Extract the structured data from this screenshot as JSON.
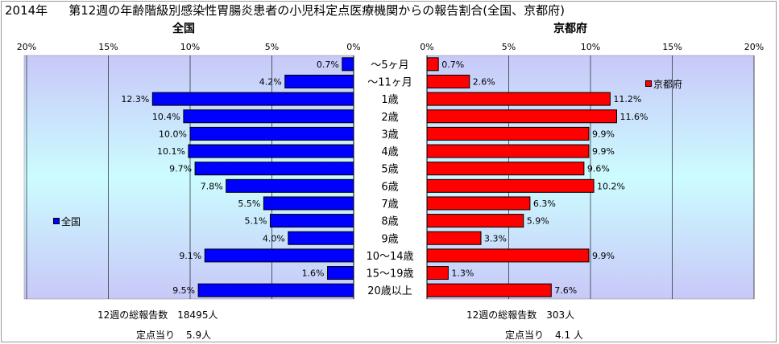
{
  "title": {
    "year": "2014年",
    "text": "第12週の年齢階級別感染性胃腸炎患者の小児科定点医療機関からの報告割合(全国、京都府)"
  },
  "colors": {
    "zenkoku_bar": "#0000ff",
    "kyoto_bar": "#ff0000",
    "plot_bg_top": "#c8c8f8",
    "plot_bg_mid": "#ccfcff",
    "plot_bg_bottom": "#c8c8f8",
    "grid": "#000000"
  },
  "chart_data": [
    {
      "type": "bar",
      "orientation": "horizontal",
      "direction": "right-to-left",
      "title": "全国",
      "categories": [
        "～5ヶ月",
        "～11ヶ月",
        "1歳",
        "2歳",
        "3歳",
        "4歳",
        "5歳",
        "6歳",
        "7歳",
        "8歳",
        "9歳",
        "10～14歳",
        "15～19歳",
        "20歳以上"
      ],
      "series": [
        {
          "name": "全国",
          "values": [
            0.7,
            4.2,
            12.3,
            10.4,
            10.0,
            10.1,
            9.7,
            7.8,
            5.5,
            5.1,
            4.0,
            9.1,
            1.6,
            9.5
          ],
          "labels": [
            "0.7%",
            "4.2%",
            "12.3%",
            "10.4%",
            "10.0%",
            "10.1%",
            "9.7%",
            "7.8%",
            "5.5%",
            "5.1%",
            "4.0%",
            "9.1%",
            "1.6%",
            "9.5%"
          ]
        }
      ],
      "xlim": [
        0,
        20
      ],
      "ticks": [
        "0%",
        "5%",
        "10%",
        "15%",
        "20%"
      ],
      "grid": true,
      "legend": "left"
    },
    {
      "type": "bar",
      "orientation": "horizontal",
      "direction": "left-to-right",
      "title": "京都府",
      "categories": [
        "～5ヶ月",
        "～11ヶ月",
        "1歳",
        "2歳",
        "3歳",
        "4歳",
        "5歳",
        "6歳",
        "7歳",
        "8歳",
        "9歳",
        "10～14歳",
        "15～19歳",
        "20歳以上"
      ],
      "series": [
        {
          "name": "京都府",
          "values": [
            0.7,
            2.6,
            11.2,
            11.6,
            9.9,
            9.9,
            9.6,
            10.2,
            6.3,
            5.9,
            3.3,
            9.9,
            1.3,
            7.6
          ],
          "labels": [
            "0.7%",
            "2.6%",
            "11.2%",
            "11.6%",
            "9.9%",
            "9.9%",
            "9.6%",
            "10.2%",
            "6.3%",
            "5.9%",
            "3.3%",
            "9.9%",
            "1.3%",
            "7.6%"
          ]
        }
      ],
      "xlim": [
        0,
        20
      ],
      "ticks": [
        "0%",
        "5%",
        "10%",
        "15%",
        "20%"
      ],
      "grid": true,
      "legend": "top-right"
    }
  ],
  "footer": {
    "zenkoku": {
      "total_label": "12週の総報告数",
      "total_value": "18495人",
      "per_label": "定点当り",
      "per_value": "5.9人"
    },
    "kyoto": {
      "total_label": "12週の総報告数",
      "total_value": "303人",
      "per_label": "定点当り",
      "per_value": "4.1 人"
    }
  }
}
